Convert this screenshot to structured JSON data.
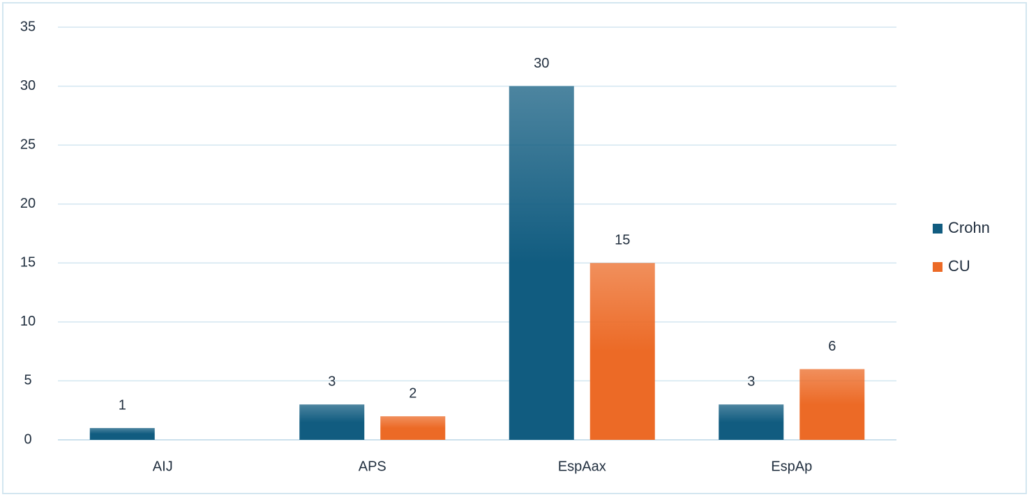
{
  "chart_data": {
    "type": "bar",
    "categories": [
      "AIJ",
      "APS",
      "EspAax",
      "EspAp"
    ],
    "series": [
      {
        "name": "Crohn",
        "color": "#115c80",
        "values": [
          1,
          3,
          30,
          3
        ]
      },
      {
        "name": "CU",
        "color": "#ec6a26",
        "values": [
          null,
          2,
          15,
          6
        ]
      }
    ],
    "ylim": [
      0,
      35
    ],
    "yticks": [
      0,
      5,
      10,
      15,
      20,
      25,
      30,
      35
    ],
    "grid": true,
    "legend": "right"
  }
}
